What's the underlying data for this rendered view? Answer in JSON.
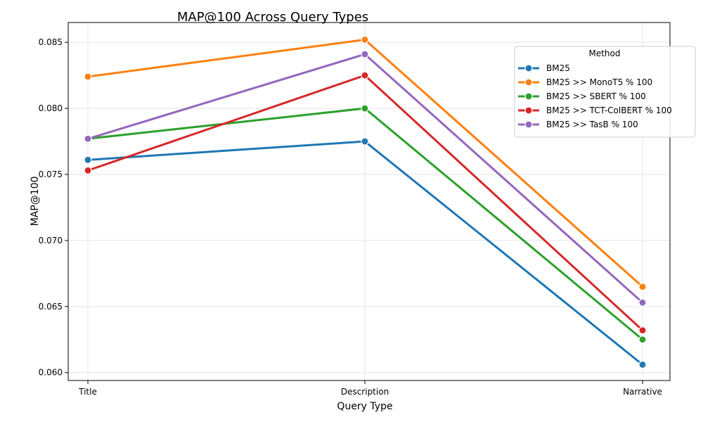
{
  "chart_data": {
    "type": "line",
    "title": "MAP@100 Across Query Types",
    "xlabel": "Query Type",
    "ylabel": "MAP@100",
    "categories": [
      "Title",
      "Description",
      "Narrative"
    ],
    "ylim": [
      0.0594,
      0.0865
    ],
    "yticks": [
      "0.060",
      "0.065",
      "0.070",
      "0.075",
      "0.080",
      "0.085"
    ],
    "grid": true,
    "legend": {
      "title": "Method",
      "placement": "top-right"
    },
    "series": [
      {
        "name": "BM25",
        "color": "#1f77b4",
        "values": [
          0.0761,
          0.0775,
          0.0606
        ]
      },
      {
        "name": "BM25 >> MonoT5 % 100",
        "color": "#ff7f0e",
        "values": [
          0.0824,
          0.0852,
          0.0665
        ]
      },
      {
        "name": "BM25 >> SBERT % 100",
        "color": "#2ca02c",
        "values": [
          0.0777,
          0.08,
          0.0625
        ]
      },
      {
        "name": "BM25 >> TCT-ColBERT % 100",
        "color": "#d62728",
        "values": [
          0.0753,
          0.0825,
          0.0632
        ]
      },
      {
        "name": "BM25 >> TasB % 100",
        "color": "#9467bd",
        "values": [
          0.0777,
          0.0841,
          0.0653
        ]
      }
    ]
  }
}
